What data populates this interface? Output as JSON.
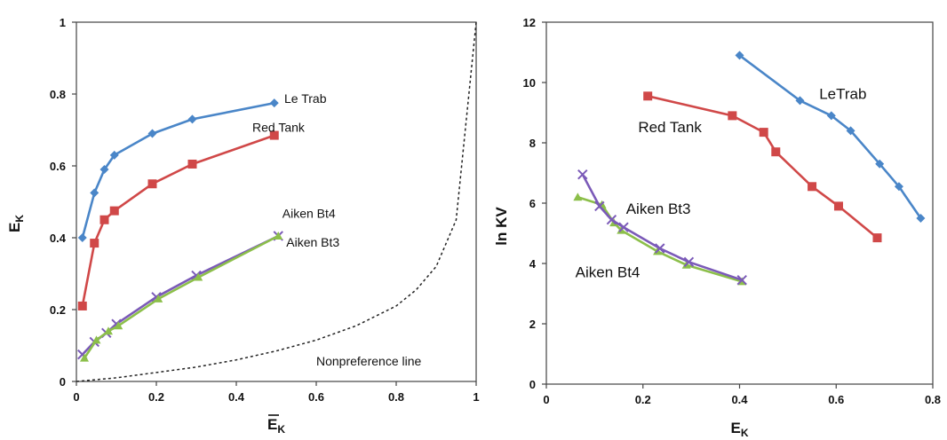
{
  "chart_data": [
    {
      "type": "line",
      "title": "",
      "ylabel": {
        "main": "E",
        "sub": "K"
      },
      "xlabel": {
        "main": "E",
        "sub": "K",
        "bar": true
      },
      "xlim": [
        0,
        1
      ],
      "ylim": [
        0,
        1
      ],
      "x_ticks": [
        "0",
        "0.2",
        "0.4",
        "0.6",
        "0.8",
        "1"
      ],
      "x_tick_values": [
        0,
        0.2,
        0.4,
        0.6,
        0.8,
        1
      ],
      "y_ticks": [
        "0",
        "0.2",
        "0.4",
        "0.6",
        "0.8",
        "1"
      ],
      "y_tick_values": [
        0,
        0.2,
        0.4,
        0.6,
        0.8,
        1
      ],
      "grid": false,
      "series": [
        {
          "name": "Le Trab",
          "color": "#4a86c8",
          "marker": "diamond",
          "x": [
            0.015,
            0.045,
            0.07,
            0.095,
            0.19,
            0.29,
            0.495
          ],
          "y": [
            0.4,
            0.525,
            0.59,
            0.63,
            0.69,
            0.73,
            0.775
          ]
        },
        {
          "name": "Red Tank",
          "color": "#d04848",
          "marker": "square",
          "x": [
            0.015,
            0.045,
            0.07,
            0.095,
            0.19,
            0.29,
            0.495
          ],
          "y": [
            0.21,
            0.385,
            0.45,
            0.475,
            0.55,
            0.605,
            0.685
          ]
        },
        {
          "name": "Aiken Bt4",
          "color": "#7b5ab8",
          "marker": "cross",
          "x": [
            0.015,
            0.045,
            0.075,
            0.1,
            0.2,
            0.3,
            0.505
          ],
          "y": [
            0.075,
            0.11,
            0.135,
            0.16,
            0.235,
            0.295,
            0.405
          ]
        },
        {
          "name": "Aiken Bt3",
          "color": "#8cbf4a",
          "marker": "triangle",
          "x": [
            0.02,
            0.05,
            0.08,
            0.105,
            0.205,
            0.305,
            0.505
          ],
          "y": [
            0.065,
            0.115,
            0.14,
            0.155,
            0.23,
            0.29,
            0.405
          ]
        },
        {
          "name": "Nonpreference line",
          "color": "#222222",
          "marker": "none",
          "dashed": true,
          "x": [
            0,
            0.1,
            0.2,
            0.3,
            0.4,
            0.5,
            0.6,
            0.7,
            0.8,
            0.85,
            0.9,
            0.95,
            1.0
          ],
          "y": [
            0,
            0.01,
            0.025,
            0.04,
            0.06,
            0.085,
            0.115,
            0.155,
            0.21,
            0.255,
            0.32,
            0.45,
            1.0
          ]
        }
      ],
      "annotations": [
        {
          "text": "Le Trab",
          "x": 0.52,
          "y": 0.775,
          "class": "anno"
        },
        {
          "text": "Red Tank",
          "x": 0.44,
          "y": 0.695,
          "class": "anno"
        },
        {
          "text": "Aiken Bt4",
          "x": 0.515,
          "y": 0.455,
          "class": "anno"
        },
        {
          "text": "Aiken Bt3",
          "x": 0.525,
          "y": 0.375,
          "class": "anno"
        },
        {
          "text": "Nonpreference line",
          "x": 0.6,
          "y": 0.045,
          "class": "anno"
        }
      ]
    },
    {
      "type": "line",
      "title": "",
      "ylabel": {
        "main": "ln KV",
        "sub": ""
      },
      "xlabel": {
        "main": "E",
        "sub": "K",
        "bar": false
      },
      "xlim": [
        0,
        0.8
      ],
      "ylim": [
        0,
        12
      ],
      "x_ticks": [
        "0",
        "0.2",
        "0.4",
        "0.6",
        "0.8"
      ],
      "x_tick_values": [
        0,
        0.2,
        0.4,
        0.6,
        0.8
      ],
      "y_ticks": [
        "0",
        "2",
        "4",
        "6",
        "8",
        "10",
        "12"
      ],
      "y_tick_values": [
        0,
        2,
        4,
        6,
        8,
        10,
        12
      ],
      "grid": false,
      "series": [
        {
          "name": "LeTrab",
          "color": "#4a86c8",
          "marker": "diamond",
          "x": [
            0.4,
            0.525,
            0.59,
            0.63,
            0.69,
            0.73,
            0.775
          ],
          "y": [
            10.9,
            9.4,
            8.9,
            8.4,
            7.3,
            6.55,
            5.5
          ]
        },
        {
          "name": "Red Tank",
          "color": "#d04848",
          "marker": "square",
          "x": [
            0.21,
            0.385,
            0.45,
            0.475,
            0.55,
            0.605,
            0.685
          ],
          "y": [
            9.55,
            8.9,
            8.35,
            7.7,
            6.55,
            5.9,
            4.85
          ]
        },
        {
          "name": "Aiken Bt3",
          "color": "#8cbf4a",
          "marker": "triangle",
          "x": [
            0.065,
            0.115,
            0.14,
            0.155,
            0.23,
            0.29,
            0.405
          ],
          "y": [
            6.2,
            5.95,
            5.35,
            5.1,
            4.4,
            3.95,
            3.4
          ]
        },
        {
          "name": "Aiken Bt4",
          "color": "#7b5ab8",
          "marker": "cross",
          "x": [
            0.075,
            0.11,
            0.135,
            0.16,
            0.235,
            0.295,
            0.405
          ],
          "y": [
            6.95,
            5.9,
            5.45,
            5.2,
            4.5,
            4.05,
            3.45
          ]
        }
      ],
      "annotations": [
        {
          "text": "LeTrab",
          "x": 0.565,
          "y": 9.45,
          "class": "anno-big"
        },
        {
          "text": "Red Tank",
          "x": 0.19,
          "y": 8.35,
          "class": "anno-big"
        },
        {
          "text": "Aiken Bt3",
          "x": 0.165,
          "y": 5.65,
          "class": "anno-big"
        },
        {
          "text": "Aiken Bt4",
          "x": 0.06,
          "y": 3.55,
          "class": "anno-big"
        }
      ]
    }
  ]
}
